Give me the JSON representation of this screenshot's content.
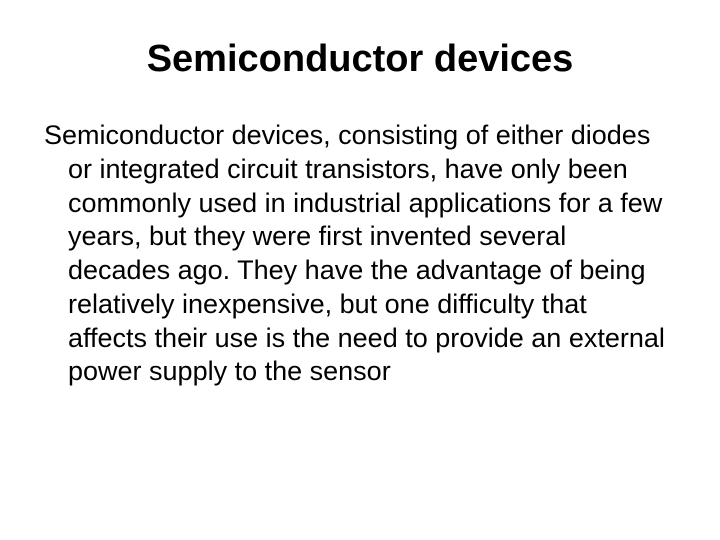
{
  "slide": {
    "title": "Semiconductor devices",
    "body": "Semiconductor devices, consisting of either diodes or integrated circuit transistors, have only been commonly used in industrial applications for a few years, but they were first invented several decades ago. They have the advantage of being relatively inexpensive, but one difficulty that affects their use is the need to provide an external power supply to the sensor",
    "title_fontsize": 38,
    "body_fontsize": 27,
    "title_color": "#000000",
    "body_color": "#000000",
    "background_color": "#ffffff",
    "font_family": "Arial"
  }
}
